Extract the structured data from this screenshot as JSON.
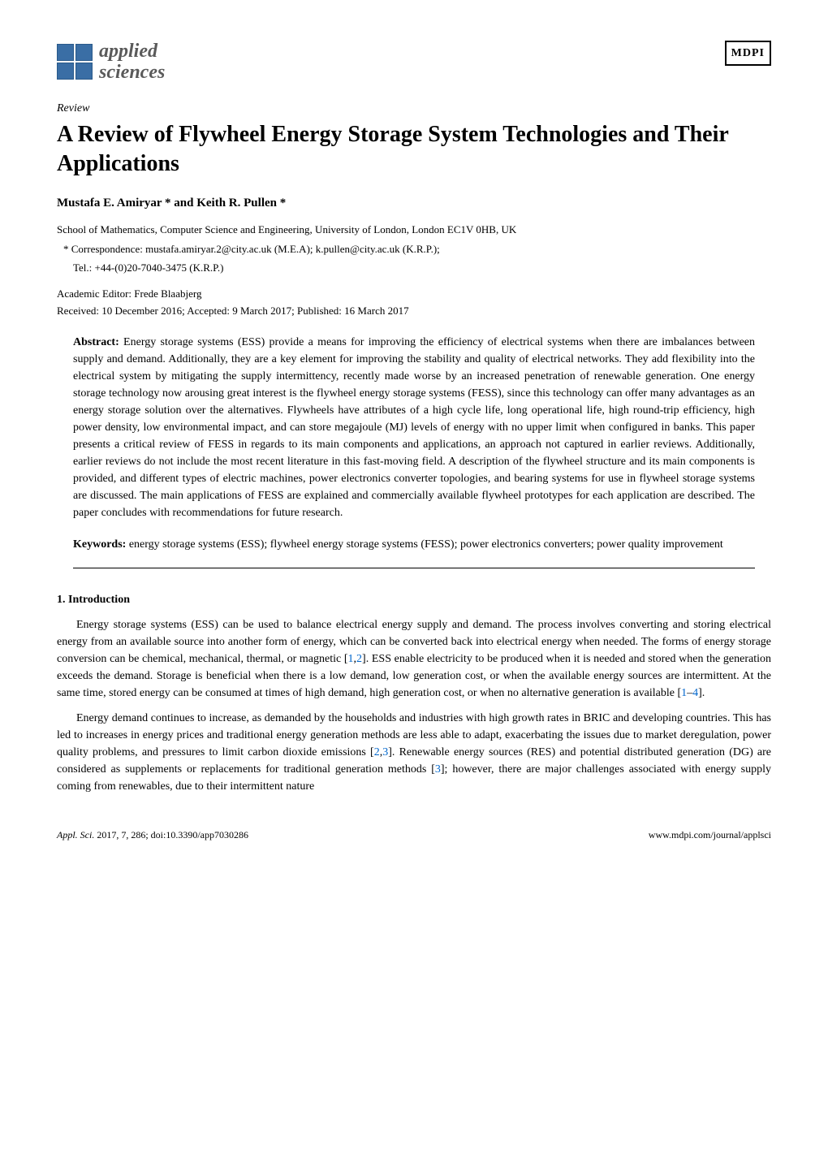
{
  "header": {
    "journal_name_line1": "applied",
    "journal_name_line2": "sciences",
    "publisher_logo": "MDPI"
  },
  "article_type": "Review",
  "title": "A Review of Flywheel Energy Storage System Technologies and Their Applications",
  "authors": "Mustafa E. Amiryar * and Keith R. Pullen *",
  "affiliation": "School of Mathematics, Computer Science and Engineering, University of London, London EC1V 0HB, UK",
  "correspondence_label": "*",
  "correspondence": "Correspondence: mustafa.amiryar.2@city.ac.uk (M.E.A); k.pullen@city.ac.uk (K.R.P.);",
  "tel": "Tel.: +44-(0)20-7040-3475 (K.R.P.)",
  "editor": "Academic Editor: Frede Blaabjerg",
  "dates": "Received: 10 December 2016; Accepted: 9 March 2017; Published: 16 March 2017",
  "abstract_label": "Abstract:",
  "abstract": "Energy storage systems (ESS) provide a means for improving the efficiency of electrical systems when there are imbalances between supply and demand. Additionally, they are a key element for improving the stability and quality of electrical networks. They add flexibility into the electrical system by mitigating the supply intermittency, recently made worse by an increased penetration of renewable generation. One energy storage technology now arousing great interest is the flywheel energy storage systems (FESS), since this technology can offer many advantages as an energy storage solution over the alternatives. Flywheels have attributes of a high cycle life, long operational life, high round-trip efficiency, high power density, low environmental impact, and can store megajoule (MJ) levels of energy with no upper limit when configured in banks. This paper presents a critical review of FESS in regards to its main components and applications, an approach not captured in earlier reviews. Additionally, earlier reviews do not include the most recent literature in this fast-moving field. A description of the flywheel structure and its main components is provided, and different types of electric machines, power electronics converter topologies, and bearing systems for use in flywheel storage systems are discussed. The main applications of FESS are explained and commercially available flywheel prototypes for each application are described. The paper concludes with recommendations for future research.",
  "keywords_label": "Keywords:",
  "keywords": "energy storage systems (ESS); flywheel energy storage systems (FESS); power electronics converters; power quality improvement",
  "section1_heading": "1. Introduction",
  "para1_pre": "Energy storage systems (ESS) can be used to balance electrical energy supply and demand. The process involves converting and storing electrical energy from an available source into another form of energy, which can be converted back into electrical energy when needed. The forms of energy storage conversion can be chemical, mechanical, thermal, or magnetic [",
  "ref1": "1",
  "ref2": "2",
  "para1_mid": "]. ESS enable electricity to be produced when it is needed and stored when the generation exceeds the demand. Storage is beneficial when there is a low demand, low generation cost, or when the available energy sources are intermittent. At the same time, stored energy can be consumed at times of high demand, high generation cost, or when no alternative generation is available [",
  "ref1b": "1",
  "ref4": "4",
  "para1_end": "].",
  "para2_pre": "Energy demand continues to increase, as demanded by the households and industries with high growth rates in BRIC and developing countries. This has led to increases in energy prices and traditional energy generation methods are less able to adapt, exacerbating the issues due to market deregulation, power quality problems, and pressures to limit carbon dioxide emissions [",
  "ref2b": "2",
  "ref3": "3",
  "para2_mid": "]. Renewable energy sources (RES) and potential distributed generation (DG) are considered as supplements or replacements for traditional generation methods [",
  "ref3b": "3",
  "para2_end": "]; however, there are major challenges associated with energy supply coming from renewables, due to their intermittent nature",
  "footer": {
    "left_italic": "Appl. Sci.",
    "left_rest": " 2017, 7, 286; doi:10.3390/app7030286",
    "right": "www.mdpi.com/journal/applsci"
  },
  "colors": {
    "link": "#0066cc",
    "logo_blue": "#3a6ea5",
    "text": "#000000",
    "bg": "#ffffff"
  }
}
